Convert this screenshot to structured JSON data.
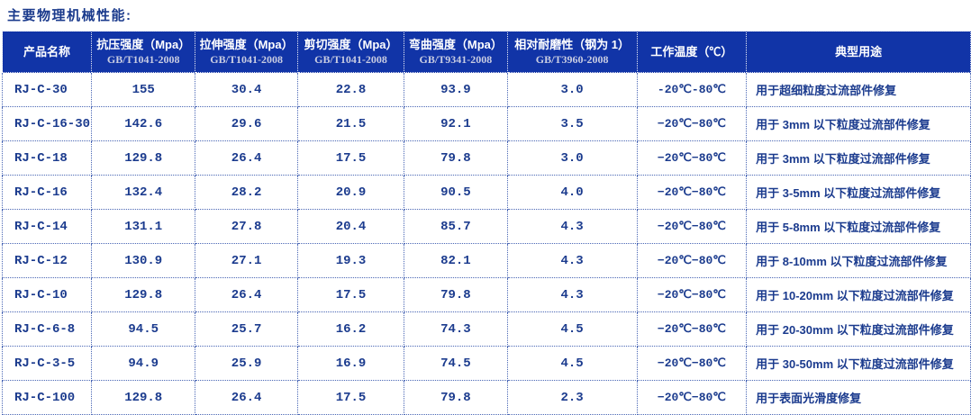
{
  "title": "主要物理机械性能:",
  "colors": {
    "header_bg": "#1134A7",
    "header_text": "#FFFFFF",
    "header_subtext": "#C9CDE2",
    "data_text": "#1B3B8E",
    "border_dark": "#26418E",
    "border_light": "#4A67B5"
  },
  "table": {
    "columns": [
      {
        "label": "产品名称",
        "sub": ""
      },
      {
        "label": "抗压强度（Mpa）",
        "sub": "GB/T1041-2008"
      },
      {
        "label": "拉伸强度（Mpa）",
        "sub": "GB/T1041-2008"
      },
      {
        "label": "剪切强度（Mpa）",
        "sub": "GB/T1041-2008"
      },
      {
        "label": "弯曲强度（Mpa）",
        "sub": "GB/T9341-2008"
      },
      {
        "label": "相对耐磨性（钢为 1）",
        "sub": "GB/T3960-2008"
      },
      {
        "label": "工作温度（℃）",
        "sub": ""
      },
      {
        "label": "典型用途",
        "sub": ""
      }
    ],
    "rows": [
      [
        "RJ-C-30",
        "155",
        "30.4",
        "22.8",
        "93.9",
        "3.0",
        "-20℃-80℃",
        "用于超细粒度过流部件修复"
      ],
      [
        "RJ-C-16-30",
        "142.6",
        "29.6",
        "21.5",
        "92.1",
        "3.5",
        "−20℃−80℃",
        "用于 3mm 以下粒度过流部件修复"
      ],
      [
        "RJ-C-18",
        "129.8",
        "26.4",
        "17.5",
        "79.8",
        "3.0",
        "−20℃−80℃",
        "用于 3mm 以下粒度过流部件修复"
      ],
      [
        "RJ-C-16",
        "132.4",
        "28.2",
        "20.9",
        "90.5",
        "4.0",
        "−20℃−80℃",
        "用于 3-5mm 以下粒度过流部件修复"
      ],
      [
        "RJ-C-14",
        "131.1",
        "27.8",
        "20.4",
        "85.7",
        "4.3",
        "−20℃−80℃",
        "用于 5-8mm 以下粒度过流部件修复"
      ],
      [
        "RJ-C-12",
        "130.9",
        "27.1",
        "19.3",
        "82.1",
        "4.3",
        "−20℃−80℃",
        "用于 8-10mm 以下粒度过流部件修复"
      ],
      [
        "RJ-C-10",
        "129.8",
        "26.4",
        "17.5",
        "79.8",
        "4.3",
        "−20℃−80℃",
        "用于 10-20mm 以下粒度过流部件修复"
      ],
      [
        "RJ-C-6-8",
        "94.5",
        "25.7",
        "16.2",
        "74.3",
        "4.5",
        "−20℃−80℃",
        "用于 20-30mm 以下粒度过流部件修复"
      ],
      [
        "RJ-C-3-5",
        "94.9",
        "25.9",
        "16.9",
        "74.5",
        "4.5",
        "−20℃−80℃",
        "用于 30-50mm 以下粒度过流部件修复"
      ],
      [
        "RJ-C-100",
        "129.8",
        "26.4",
        "17.5",
        "79.8",
        "2.3",
        "−20℃−80℃",
        "用于表面光滑度修复"
      ]
    ]
  }
}
